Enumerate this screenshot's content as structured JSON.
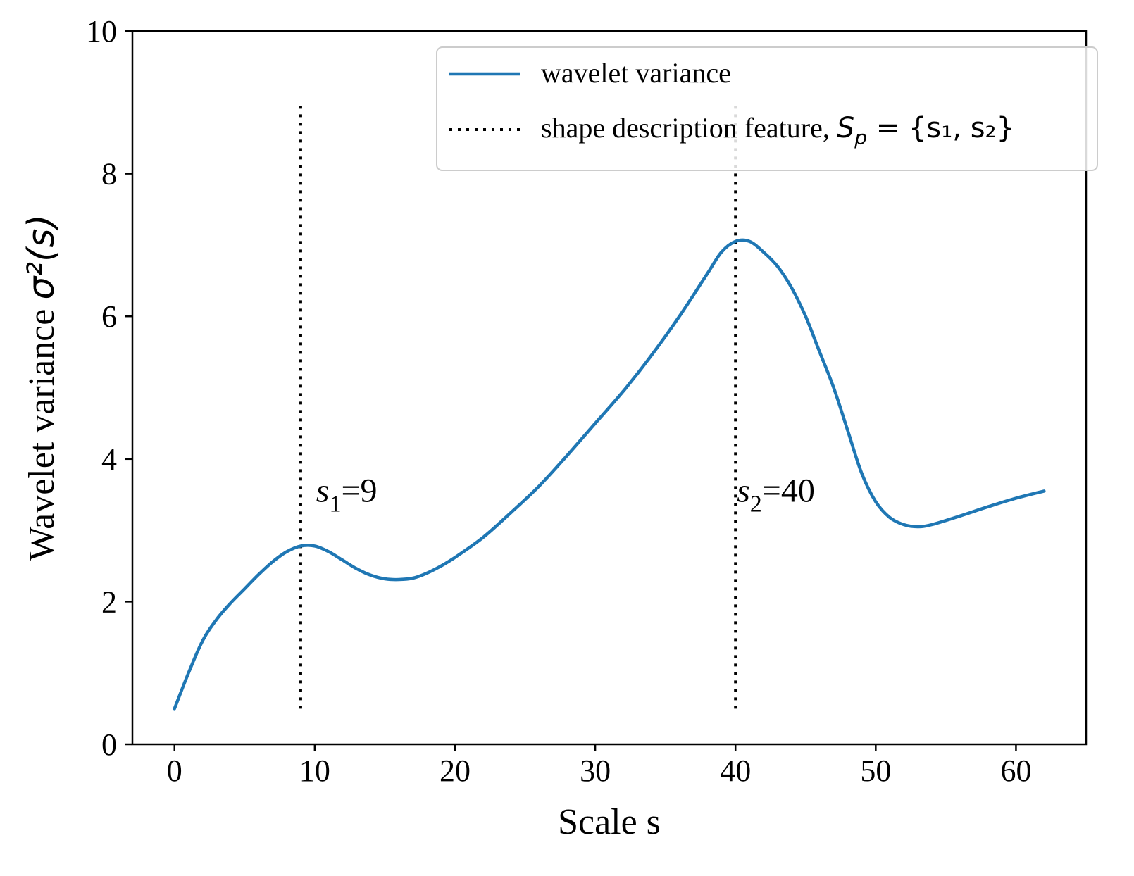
{
  "chart_data": {
    "type": "line",
    "xlabel": "Scale s",
    "ylabel_text": "Wavelet variance ",
    "ylabel_math": "σ²(s)",
    "xlim": [
      -3,
      65
    ],
    "ylim": [
      0,
      10
    ],
    "xticks": [
      0,
      10,
      20,
      30,
      40,
      50,
      60
    ],
    "yticks": [
      0,
      2,
      4,
      6,
      8,
      10
    ],
    "grid": false,
    "legend": {
      "position": "top-right",
      "entries": [
        {
          "label": "wavelet variance",
          "style": "solid"
        },
        {
          "label_text": "shape description feature, ",
          "label_math": "S",
          "label_sub": "p",
          "label_rest": " = {s₁, s₂}",
          "style": "dotted"
        }
      ]
    },
    "series": [
      {
        "name": "wavelet variance",
        "color": "#1f77b4",
        "x": [
          0,
          1,
          2,
          3,
          4,
          5,
          6,
          7,
          8,
          9,
          10,
          11,
          12,
          13,
          14,
          15,
          16,
          17,
          18,
          19,
          20,
          22,
          24,
          26,
          28,
          30,
          32,
          34,
          36,
          38,
          39,
          40,
          41,
          42,
          43,
          44,
          45,
          46,
          47,
          48,
          49,
          50,
          51,
          52,
          53,
          54,
          56,
          58,
          60,
          62
        ],
        "y": [
          0.5,
          1.0,
          1.45,
          1.75,
          1.98,
          2.18,
          2.38,
          2.56,
          2.7,
          2.78,
          2.78,
          2.7,
          2.58,
          2.46,
          2.37,
          2.32,
          2.31,
          2.33,
          2.4,
          2.5,
          2.62,
          2.9,
          3.25,
          3.62,
          4.05,
          4.5,
          4.95,
          5.45,
          6.0,
          6.6,
          6.9,
          7.05,
          7.05,
          6.9,
          6.7,
          6.4,
          6.0,
          5.5,
          5.0,
          4.4,
          3.8,
          3.4,
          3.18,
          3.08,
          3.05,
          3.08,
          3.2,
          3.33,
          3.45,
          3.55
        ]
      }
    ],
    "vlines": [
      {
        "x": 9,
        "y_from": 0.5,
        "y_to": 9.0,
        "style": "dotted",
        "color": "#000000"
      },
      {
        "x": 40,
        "y_from": 0.5,
        "y_to": 9.0,
        "style": "dotted",
        "color": "#000000"
      }
    ],
    "annotations": [
      {
        "symbol": "s",
        "sub": "1",
        "text": "=9",
        "x": 11,
        "y": 3.4
      },
      {
        "symbol": "s",
        "sub": "2",
        "text": "=40",
        "x": 41,
        "y": 3.4
      }
    ]
  }
}
